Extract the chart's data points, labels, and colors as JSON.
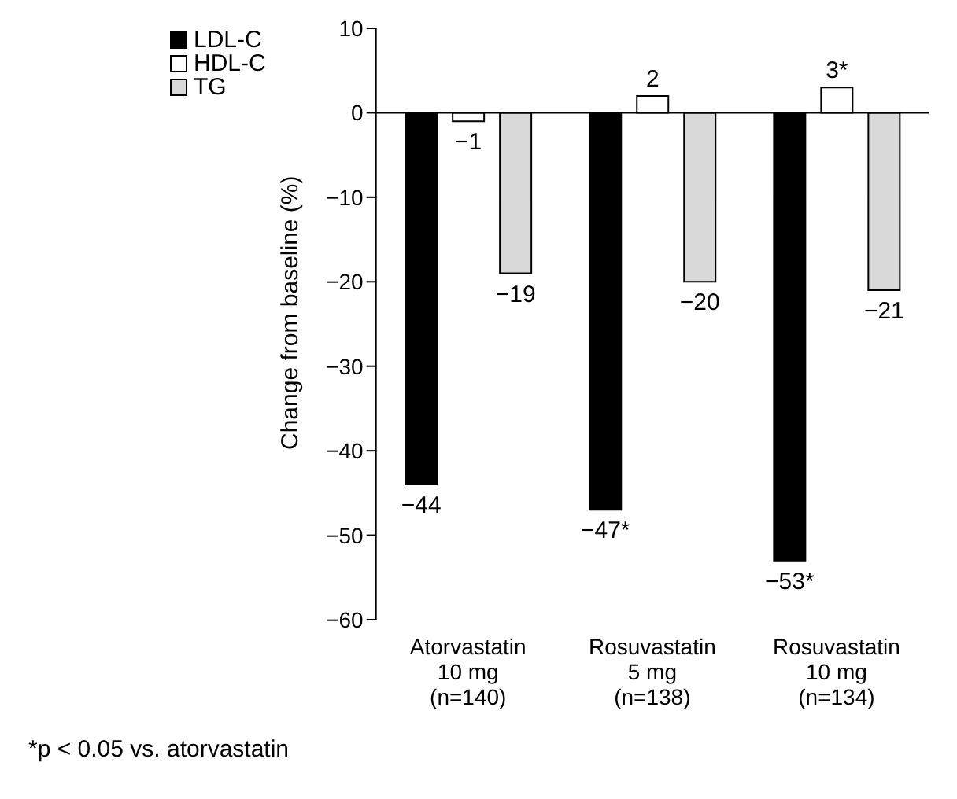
{
  "chart_data": {
    "type": "bar",
    "ylabel": "Change from baseline (%)",
    "categories": [
      "Atorvastatin\n10 mg\n(n=140)",
      "Rosuvastatin\n5 mg\n(n=138)",
      "Rosuvastatin\n10 mg\n(n=134)"
    ],
    "series": [
      {
        "name": "LDL-C",
        "color": "#000000",
        "values": [
          -44,
          -47,
          -53
        ],
        "value_labels": [
          "−44",
          "−47*",
          "−53*"
        ]
      },
      {
        "name": "HDL-C",
        "color": "#ffffff",
        "values": [
          -1,
          2,
          3
        ],
        "value_labels": [
          "−1",
          "2",
          "3*"
        ]
      },
      {
        "name": "TG",
        "color": "#d9d9d9",
        "values": [
          -19,
          -20,
          -21
        ],
        "value_labels": [
          "−19",
          "−20",
          "−21"
        ]
      }
    ],
    "ylim": [
      -60,
      10
    ],
    "yticks": [
      -60,
      -50,
      -40,
      -30,
      -20,
      -10,
      0,
      10
    ],
    "legend": "top left",
    "annotations": [
      "*p < 0.05 vs. atorvastatin"
    ]
  }
}
